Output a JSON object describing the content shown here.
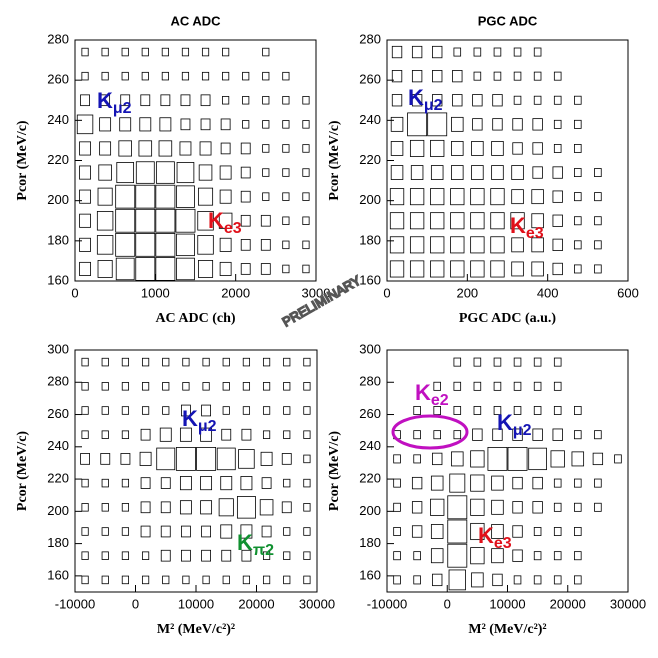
{
  "chart_data": [
    {
      "type": "box2d",
      "title": "AC ADC",
      "xlabel": "AC ADC (ch)",
      "ylabel": "Pcor (MeV/c)",
      "xlim": [
        0,
        3000
      ],
      "xticks": [
        0,
        1000,
        2000,
        3000
      ],
      "ylim": [
        160,
        280
      ],
      "yticks": [
        160,
        180,
        200,
        220,
        240,
        260,
        280
      ],
      "color": "#000000",
      "values": [
        [
          3,
          5,
          8,
          9,
          9,
          8,
          5,
          3,
          2,
          2,
          1,
          1
        ],
        [
          3,
          6,
          9,
          9,
          9,
          8,
          6,
          3,
          2,
          2,
          1,
          1
        ],
        [
          3,
          6,
          9,
          9,
          9,
          9,
          6,
          4,
          2,
          2,
          1,
          1
        ],
        [
          3,
          5,
          9,
          9,
          9,
          8,
          5,
          3,
          2,
          1,
          1,
          1
        ],
        [
          3,
          4,
          7,
          8,
          8,
          7,
          4,
          3,
          2,
          1,
          1,
          1
        ],
        [
          3,
          3,
          4,
          4,
          4,
          3,
          3,
          2,
          2,
          1,
          1,
          1
        ],
        [
          6,
          3,
          3,
          3,
          3,
          2,
          2,
          2,
          1,
          1,
          1,
          1
        ],
        [
          2,
          2,
          2,
          2,
          2,
          2,
          2,
          1,
          1,
          1,
          1,
          1
        ],
        [
          1,
          1,
          1,
          1,
          1,
          1,
          1,
          1,
          1,
          1,
          1,
          0
        ],
        [
          1,
          1,
          1,
          1,
          1,
          1,
          1,
          1,
          0,
          1,
          0,
          0
        ]
      ],
      "annotations": [
        {
          "text": "K",
          "sub": "μ2",
          "color": "#1414b4"
        },
        {
          "text": "K",
          "sub": "e3",
          "color": "#e0101a"
        }
      ]
    },
    {
      "type": "box2d",
      "title": "PGC ADC",
      "xlabel": "PGC ADC (a.u.)",
      "ylabel": "Pcor (MeV/c)",
      "xlim": [
        0,
        600
      ],
      "xticks": [
        0,
        200,
        400,
        600
      ],
      "ylim": [
        160,
        280
      ],
      "yticks": [
        160,
        180,
        200,
        220,
        240,
        260,
        280
      ],
      "color": "#000000",
      "values": [
        [
          4,
          4,
          4,
          4,
          4,
          4,
          3,
          3,
          2,
          1,
          1,
          0
        ],
        [
          4,
          4,
          4,
          4,
          4,
          4,
          3,
          3,
          2,
          1,
          1,
          0
        ],
        [
          4,
          4,
          4,
          4,
          4,
          4,
          4,
          3,
          2,
          1,
          1,
          0
        ],
        [
          4,
          4,
          4,
          4,
          4,
          4,
          3,
          3,
          2,
          1,
          1,
          0
        ],
        [
          3,
          3,
          3,
          3,
          3,
          3,
          3,
          2,
          2,
          1,
          1,
          0
        ],
        [
          3,
          4,
          4,
          3,
          3,
          3,
          2,
          2,
          1,
          1,
          0,
          0
        ],
        [
          3,
          8,
          8,
          3,
          2,
          2,
          2,
          2,
          1,
          1,
          0,
          0
        ],
        [
          2,
          2,
          2,
          2,
          2,
          2,
          1,
          1,
          1,
          1,
          0,
          0
        ],
        [
          2,
          2,
          2,
          2,
          1,
          1,
          1,
          1,
          1,
          0,
          0,
          0
        ],
        [
          2,
          2,
          2,
          1,
          1,
          1,
          1,
          1,
          0,
          0,
          0,
          0
        ]
      ],
      "annotations": [
        {
          "text": "K",
          "sub": "μ2",
          "color": "#1414b4"
        },
        {
          "text": "K",
          "sub": "e3",
          "color": "#e0101a"
        }
      ]
    },
    {
      "type": "box2d",
      "xlabel": "M² (MeV/c²)²",
      "ylabel": "Pcor (MeV/c)",
      "xlim": [
        -10000,
        30000
      ],
      "xticks": [
        -10000,
        0,
        10000,
        20000,
        30000
      ],
      "ylim": [
        150,
        300
      ],
      "yticks": [
        160,
        180,
        200,
        220,
        240,
        260,
        280,
        300
      ],
      "color": "#000000",
      "values": [
        [
          1,
          1,
          1,
          1,
          1,
          1,
          1,
          1,
          1,
          1,
          1,
          1
        ],
        [
          1,
          1,
          1,
          1,
          2,
          2,
          2,
          2,
          2,
          1,
          1,
          1
        ],
        [
          1,
          1,
          1,
          2,
          2,
          2,
          2,
          3,
          3,
          2,
          1,
          1
        ],
        [
          1,
          1,
          1,
          2,
          2,
          3,
          3,
          5,
          8,
          4,
          2,
          1
        ],
        [
          1,
          1,
          1,
          2,
          2,
          3,
          3,
          3,
          3,
          2,
          1,
          1
        ],
        [
          2,
          2,
          2,
          3,
          8,
          9,
          9,
          8,
          6,
          3,
          2,
          1
        ],
        [
          1,
          1,
          1,
          2,
          3,
          3,
          3,
          2,
          2,
          1,
          1,
          1
        ],
        [
          1,
          1,
          1,
          1,
          1,
          2,
          2,
          1,
          1,
          1,
          1,
          1
        ],
        [
          1,
          1,
          1,
          1,
          1,
          1,
          1,
          1,
          1,
          1,
          1,
          1
        ],
        [
          1,
          1,
          1,
          1,
          1,
          1,
          1,
          1,
          1,
          1,
          1,
          1
        ]
      ],
      "annotations": [
        {
          "text": "K",
          "sub": "μ2",
          "color": "#1414b4"
        },
        {
          "text": "K",
          "sub": "π2",
          "color": "#109030"
        }
      ]
    },
    {
      "type": "box2d",
      "xlabel": "M² (MeV/c²)²",
      "ylabel": "Pcor (MeV/c)",
      "xlim": [
        -10000,
        30000
      ],
      "xticks": [
        -10000,
        0,
        10000,
        20000,
        30000
      ],
      "ylim": [
        150,
        300
      ],
      "yticks": [
        160,
        180,
        200,
        220,
        240,
        260,
        280,
        300
      ],
      "color": "#000000",
      "values": [
        [
          1,
          1,
          2,
          6,
          3,
          2,
          1,
          1,
          1,
          1,
          0,
          0
        ],
        [
          1,
          1,
          3,
          8,
          4,
          3,
          2,
          1,
          1,
          1,
          0,
          0
        ],
        [
          1,
          2,
          3,
          8,
          4,
          3,
          2,
          1,
          1,
          1,
          0,
          0
        ],
        [
          1,
          2,
          4,
          8,
          4,
          3,
          2,
          2,
          1,
          1,
          1,
          0
        ],
        [
          1,
          2,
          3,
          5,
          4,
          3,
          2,
          2,
          1,
          1,
          1,
          0
        ],
        [
          1,
          1,
          2,
          3,
          4,
          8,
          8,
          7,
          4,
          3,
          2,
          1
        ],
        [
          1,
          1,
          1,
          1,
          2,
          2,
          2,
          2,
          2,
          1,
          1,
          0
        ],
        [
          0,
          1,
          1,
          1,
          1,
          1,
          1,
          1,
          1,
          1,
          0,
          0
        ],
        [
          0,
          0,
          1,
          1,
          1,
          1,
          1,
          1,
          1,
          0,
          0,
          0
        ],
        [
          0,
          0,
          0,
          1,
          1,
          1,
          1,
          1,
          1,
          0,
          0,
          0
        ]
      ],
      "annotations": [
        {
          "text": "K",
          "sub": "e2",
          "color": "#c010c0"
        },
        {
          "text": "K",
          "sub": "μ2",
          "color": "#1414b4"
        },
        {
          "text": "K",
          "sub": "e3",
          "color": "#e0101a"
        }
      ]
    }
  ],
  "watermark": "PRELIMINARY"
}
